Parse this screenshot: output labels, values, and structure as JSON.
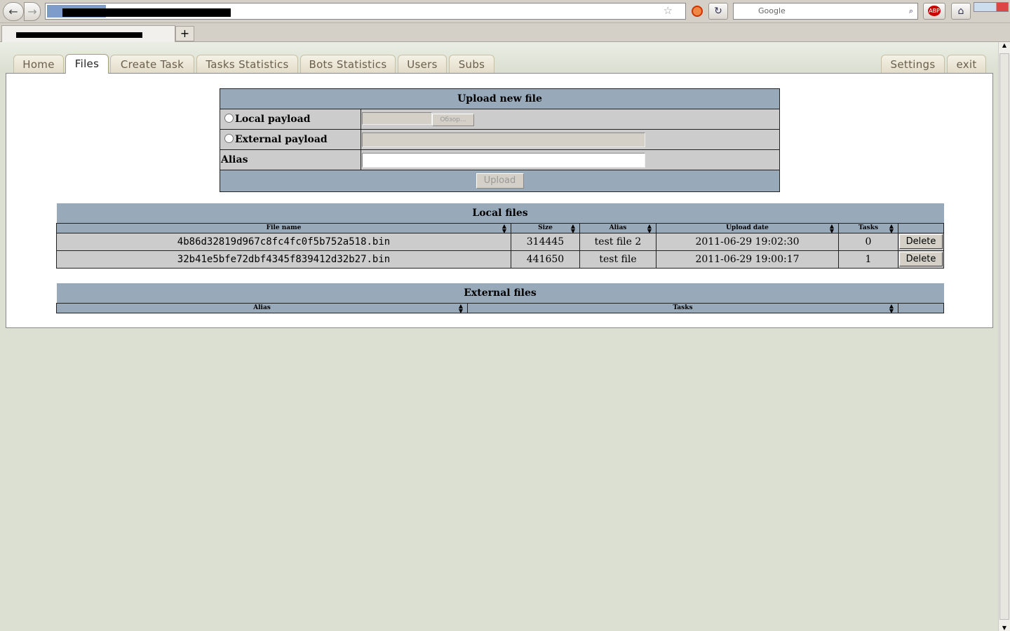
{
  "browser": {
    "search_placeholder": "Google",
    "new_tab": "+",
    "back": "←",
    "forward": "→",
    "reload": "↻",
    "home": "⌂",
    "abp": "ABP",
    "star": "☆"
  },
  "nav": {
    "tabs": [
      {
        "label": "Home"
      },
      {
        "label": "Files"
      },
      {
        "label": "Create Task"
      },
      {
        "label": "Tasks Statistics"
      },
      {
        "label": "Bots Statistics"
      },
      {
        "label": "Users"
      },
      {
        "label": "Subs"
      },
      {
        "label": "Settings"
      },
      {
        "label": "exit"
      }
    ],
    "active": "Files"
  },
  "upload": {
    "title": "Upload new file",
    "local_label": "Local payload",
    "browse_label": "Обзор...",
    "external_label": "External payload",
    "alias_label": "Alias",
    "alias_value": "",
    "upload_label": "Upload"
  },
  "local_files": {
    "title": "Local files",
    "columns": [
      "File name",
      "Size",
      "Alias",
      "Upload date",
      "Tasks",
      ""
    ],
    "rows": [
      {
        "name": "4b86d32819d967c8fc4fc0f5b752a518.bin",
        "size": "314445",
        "alias": "test file 2",
        "date": "2011-06-29 19:02:30",
        "tasks": "0",
        "action": "Delete"
      },
      {
        "name": "32b41e5bfe72dbf4345f839412d32b27.bin",
        "size": "441650",
        "alias": "test file",
        "date": "2011-06-29 19:00:17",
        "tasks": "1",
        "action": "Delete"
      }
    ]
  },
  "external_files": {
    "title": "External files",
    "columns": [
      "Alias",
      "Tasks",
      ""
    ]
  }
}
